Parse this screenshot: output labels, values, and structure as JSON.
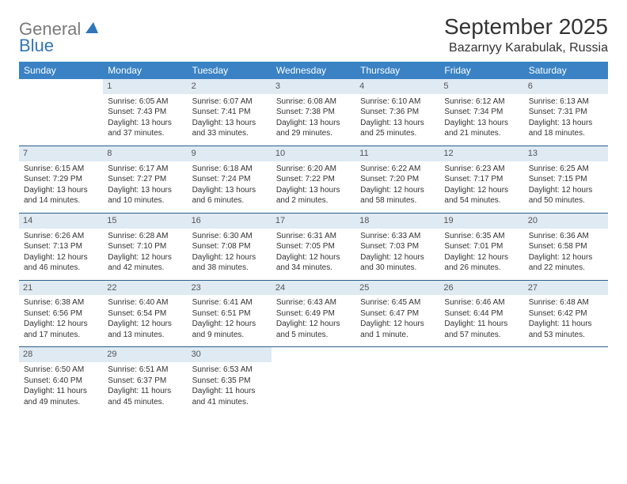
{
  "colors": {
    "header_bg": "#3a82c4",
    "daynum_bg": "#dfeaf3",
    "week_border": "#2b5e8c",
    "logo_gray": "#7a7a7a",
    "logo_blue": "#2f76bb",
    "text": "#333333",
    "page_bg": "#ffffff"
  },
  "fonts": {
    "title_size": 28,
    "location_size": 16,
    "header_size": 12,
    "daynum_size": 11,
    "body_size": 10,
    "logo_size": 22
  },
  "logo": {
    "part1": "General",
    "part2": "Blue"
  },
  "title": "September 2025",
  "location": "Bazarnyy Karabulak, Russia",
  "day_headers": [
    "Sunday",
    "Monday",
    "Tuesday",
    "Wednesday",
    "Thursday",
    "Friday",
    "Saturday"
  ],
  "weeks": [
    [
      {
        "num": "",
        "lines": []
      },
      {
        "num": "1",
        "lines": [
          "Sunrise: 6:05 AM",
          "Sunset: 7:43 PM",
          "Daylight: 13 hours and 37 minutes."
        ]
      },
      {
        "num": "2",
        "lines": [
          "Sunrise: 6:07 AM",
          "Sunset: 7:41 PM",
          "Daylight: 13 hours and 33 minutes."
        ]
      },
      {
        "num": "3",
        "lines": [
          "Sunrise: 6:08 AM",
          "Sunset: 7:38 PM",
          "Daylight: 13 hours and 29 minutes."
        ]
      },
      {
        "num": "4",
        "lines": [
          "Sunrise: 6:10 AM",
          "Sunset: 7:36 PM",
          "Daylight: 13 hours and 25 minutes."
        ]
      },
      {
        "num": "5",
        "lines": [
          "Sunrise: 6:12 AM",
          "Sunset: 7:34 PM",
          "Daylight: 13 hours and 21 minutes."
        ]
      },
      {
        "num": "6",
        "lines": [
          "Sunrise: 6:13 AM",
          "Sunset: 7:31 PM",
          "Daylight: 13 hours and 18 minutes."
        ]
      }
    ],
    [
      {
        "num": "7",
        "lines": [
          "Sunrise: 6:15 AM",
          "Sunset: 7:29 PM",
          "Daylight: 13 hours and 14 minutes."
        ]
      },
      {
        "num": "8",
        "lines": [
          "Sunrise: 6:17 AM",
          "Sunset: 7:27 PM",
          "Daylight: 13 hours and 10 minutes."
        ]
      },
      {
        "num": "9",
        "lines": [
          "Sunrise: 6:18 AM",
          "Sunset: 7:24 PM",
          "Daylight: 13 hours and 6 minutes."
        ]
      },
      {
        "num": "10",
        "lines": [
          "Sunrise: 6:20 AM",
          "Sunset: 7:22 PM",
          "Daylight: 13 hours and 2 minutes."
        ]
      },
      {
        "num": "11",
        "lines": [
          "Sunrise: 6:22 AM",
          "Sunset: 7:20 PM",
          "Daylight: 12 hours and 58 minutes."
        ]
      },
      {
        "num": "12",
        "lines": [
          "Sunrise: 6:23 AM",
          "Sunset: 7:17 PM",
          "Daylight: 12 hours and 54 minutes."
        ]
      },
      {
        "num": "13",
        "lines": [
          "Sunrise: 6:25 AM",
          "Sunset: 7:15 PM",
          "Daylight: 12 hours and 50 minutes."
        ]
      }
    ],
    [
      {
        "num": "14",
        "lines": [
          "Sunrise: 6:26 AM",
          "Sunset: 7:13 PM",
          "Daylight: 12 hours and 46 minutes."
        ]
      },
      {
        "num": "15",
        "lines": [
          "Sunrise: 6:28 AM",
          "Sunset: 7:10 PM",
          "Daylight: 12 hours and 42 minutes."
        ]
      },
      {
        "num": "16",
        "lines": [
          "Sunrise: 6:30 AM",
          "Sunset: 7:08 PM",
          "Daylight: 12 hours and 38 minutes."
        ]
      },
      {
        "num": "17",
        "lines": [
          "Sunrise: 6:31 AM",
          "Sunset: 7:05 PM",
          "Daylight: 12 hours and 34 minutes."
        ]
      },
      {
        "num": "18",
        "lines": [
          "Sunrise: 6:33 AM",
          "Sunset: 7:03 PM",
          "Daylight: 12 hours and 30 minutes."
        ]
      },
      {
        "num": "19",
        "lines": [
          "Sunrise: 6:35 AM",
          "Sunset: 7:01 PM",
          "Daylight: 12 hours and 26 minutes."
        ]
      },
      {
        "num": "20",
        "lines": [
          "Sunrise: 6:36 AM",
          "Sunset: 6:58 PM",
          "Daylight: 12 hours and 22 minutes."
        ]
      }
    ],
    [
      {
        "num": "21",
        "lines": [
          "Sunrise: 6:38 AM",
          "Sunset: 6:56 PM",
          "Daylight: 12 hours and 17 minutes."
        ]
      },
      {
        "num": "22",
        "lines": [
          "Sunrise: 6:40 AM",
          "Sunset: 6:54 PM",
          "Daylight: 12 hours and 13 minutes."
        ]
      },
      {
        "num": "23",
        "lines": [
          "Sunrise: 6:41 AM",
          "Sunset: 6:51 PM",
          "Daylight: 12 hours and 9 minutes."
        ]
      },
      {
        "num": "24",
        "lines": [
          "Sunrise: 6:43 AM",
          "Sunset: 6:49 PM",
          "Daylight: 12 hours and 5 minutes."
        ]
      },
      {
        "num": "25",
        "lines": [
          "Sunrise: 6:45 AM",
          "Sunset: 6:47 PM",
          "Daylight: 12 hours and 1 minute."
        ]
      },
      {
        "num": "26",
        "lines": [
          "Sunrise: 6:46 AM",
          "Sunset: 6:44 PM",
          "Daylight: 11 hours and 57 minutes."
        ]
      },
      {
        "num": "27",
        "lines": [
          "Sunrise: 6:48 AM",
          "Sunset: 6:42 PM",
          "Daylight: 11 hours and 53 minutes."
        ]
      }
    ],
    [
      {
        "num": "28",
        "lines": [
          "Sunrise: 6:50 AM",
          "Sunset: 6:40 PM",
          "Daylight: 11 hours and 49 minutes."
        ]
      },
      {
        "num": "29",
        "lines": [
          "Sunrise: 6:51 AM",
          "Sunset: 6:37 PM",
          "Daylight: 11 hours and 45 minutes."
        ]
      },
      {
        "num": "30",
        "lines": [
          "Sunrise: 6:53 AM",
          "Sunset: 6:35 PM",
          "Daylight: 11 hours and 41 minutes."
        ]
      },
      {
        "num": "",
        "lines": []
      },
      {
        "num": "",
        "lines": []
      },
      {
        "num": "",
        "lines": []
      },
      {
        "num": "",
        "lines": []
      }
    ]
  ]
}
